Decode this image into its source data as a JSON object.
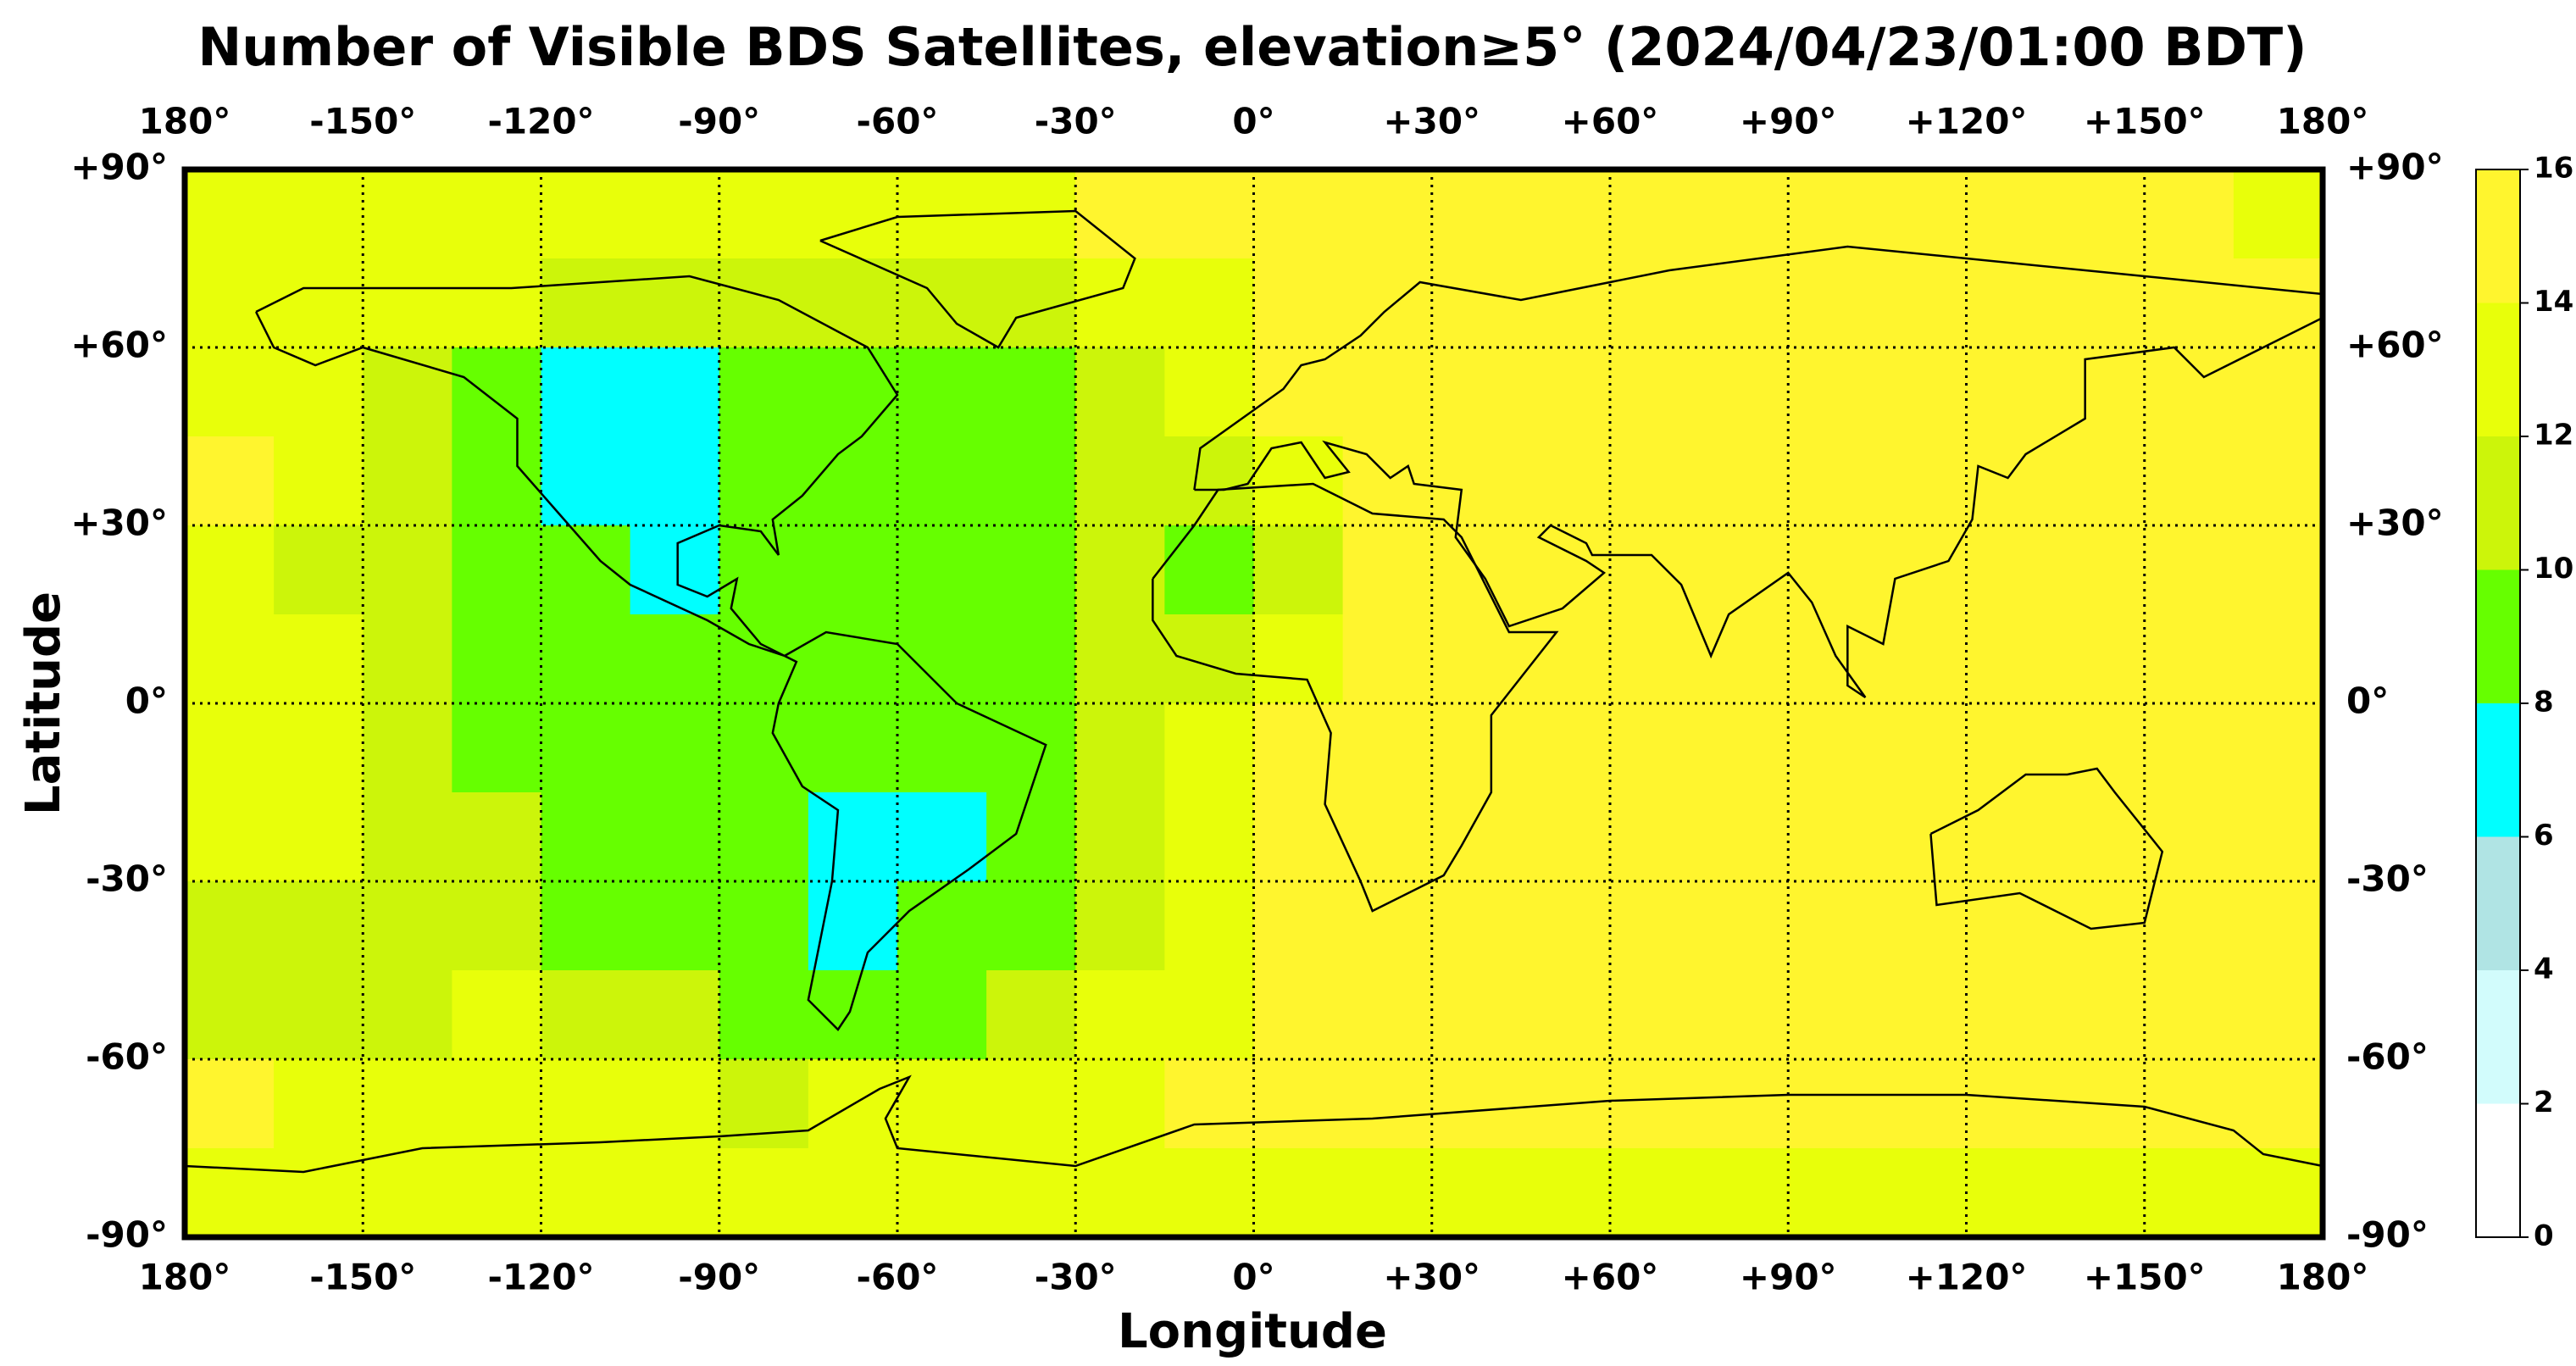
{
  "chart_data": {
    "type": "heatmap",
    "title": "Number of Visible BDS Satellites, elevation≥5° (2024/04/23/01:00 BDT)",
    "xlabel": "Longitude",
    "ylabel": "Latitude",
    "xlim": [
      -180,
      180
    ],
    "ylim": [
      -90,
      90
    ],
    "xticks": [
      {
        "value": -180,
        "label": "180°"
      },
      {
        "value": -150,
        "label": "-150°"
      },
      {
        "value": -120,
        "label": "-120°"
      },
      {
        "value": -90,
        "label": "-90°"
      },
      {
        "value": -60,
        "label": "-60°"
      },
      {
        "value": -30,
        "label": "-30°"
      },
      {
        "value": 0,
        "label": "0°"
      },
      {
        "value": 30,
        "label": "+30°"
      },
      {
        "value": 60,
        "label": "+60°"
      },
      {
        "value": 90,
        "label": "+90°"
      },
      {
        "value": 120,
        "label": "+120°"
      },
      {
        "value": 150,
        "label": "+150°"
      },
      {
        "value": 180,
        "label": "180°"
      }
    ],
    "yticks": [
      {
        "value": 90,
        "label": "+90°"
      },
      {
        "value": 60,
        "label": "+60°"
      },
      {
        "value": 30,
        "label": "+30°"
      },
      {
        "value": 0,
        "label": "0°"
      },
      {
        "value": -30,
        "label": "-30°"
      },
      {
        "value": -60,
        "label": "-60°"
      },
      {
        "value": -90,
        "label": "-90°"
      }
    ],
    "grid": true,
    "x": [
      -172.5,
      -157.5,
      -142.5,
      -127.5,
      -112.5,
      -97.5,
      -82.5,
      -67.5,
      -52.5,
      -37.5,
      -22.5,
      -7.5,
      7.5,
      22.5,
      37.5,
      52.5,
      67.5,
      82.5,
      97.5,
      112.5,
      127.5,
      142.5,
      157.5,
      172.5
    ],
    "y": [
      82.5,
      67.5,
      52.5,
      37.5,
      22.5,
      7.5,
      -7.5,
      -22.5,
      -37.5,
      -52.5,
      -67.5,
      -82.5
    ],
    "values": [
      [
        13,
        13,
        13,
        13,
        13,
        13,
        13,
        13,
        13,
        13,
        15,
        15,
        15,
        15,
        15,
        15,
        15,
        15,
        15,
        15,
        15,
        15,
        15,
        13
      ],
      [
        13,
        13,
        13,
        13,
        11,
        11,
        11,
        11,
        11,
        11,
        13,
        13,
        15,
        15,
        15,
        15,
        15,
        15,
        15,
        15,
        15,
        15,
        15,
        15
      ],
      [
        13,
        13,
        11,
        9,
        7,
        7,
        9,
        9,
        9,
        9,
        11,
        13,
        15,
        15,
        15,
        15,
        15,
        15,
        15,
        15,
        15,
        15,
        15,
        15
      ],
      [
        15,
        13,
        11,
        9,
        7,
        7,
        9,
        9,
        9,
        9,
        11,
        11,
        13,
        15,
        15,
        15,
        15,
        15,
        15,
        15,
        15,
        15,
        15,
        15
      ],
      [
        13,
        11,
        11,
        9,
        9,
        7,
        9,
        9,
        9,
        9,
        11,
        9,
        11,
        15,
        15,
        15,
        15,
        15,
        15,
        15,
        15,
        15,
        15,
        15
      ],
      [
        13,
        13,
        11,
        9,
        9,
        9,
        9,
        9,
        9,
        9,
        11,
        11,
        13,
        15,
        15,
        15,
        15,
        15,
        15,
        15,
        15,
        15,
        15,
        15
      ],
      [
        13,
        13,
        11,
        9,
        9,
        9,
        9,
        9,
        9,
        9,
        11,
        13,
        15,
        15,
        15,
        15,
        15,
        15,
        15,
        15,
        15,
        15,
        15,
        15
      ],
      [
        13,
        13,
        11,
        11,
        9,
        9,
        9,
        7,
        7,
        9,
        11,
        13,
        15,
        15,
        15,
        15,
        15,
        15,
        15,
        15,
        15,
        15,
        15,
        15
      ],
      [
        11,
        11,
        11,
        11,
        9,
        9,
        9,
        7,
        9,
        9,
        11,
        13,
        15,
        15,
        15,
        15,
        15,
        15,
        15,
        15,
        15,
        15,
        15,
        15
      ],
      [
        11,
        11,
        11,
        13,
        11,
        11,
        9,
        9,
        9,
        11,
        13,
        13,
        15,
        15,
        15,
        15,
        15,
        15,
        15,
        15,
        15,
        15,
        15,
        15
      ],
      [
        15,
        13,
        13,
        13,
        13,
        13,
        11,
        13,
        13,
        13,
        13,
        15,
        15,
        15,
        15,
        15,
        15,
        15,
        15,
        15,
        15,
        15,
        15,
        15
      ],
      [
        13,
        13,
        13,
        13,
        13,
        13,
        13,
        13,
        13,
        13,
        13,
        13,
        13,
        13,
        13,
        13,
        13,
        13,
        13,
        13,
        13,
        13,
        13,
        13
      ]
    ],
    "colorbar": {
      "ticks": [
        0,
        2,
        4,
        6,
        8,
        10,
        12,
        14,
        16
      ],
      "colors": [
        "#ffffff",
        "#d2fcfc",
        "#b0e4e4",
        "#00ffff",
        "#66ff00",
        "#ccf50a",
        "#e8ff0a",
        "#fff52e"
      ]
    }
  }
}
